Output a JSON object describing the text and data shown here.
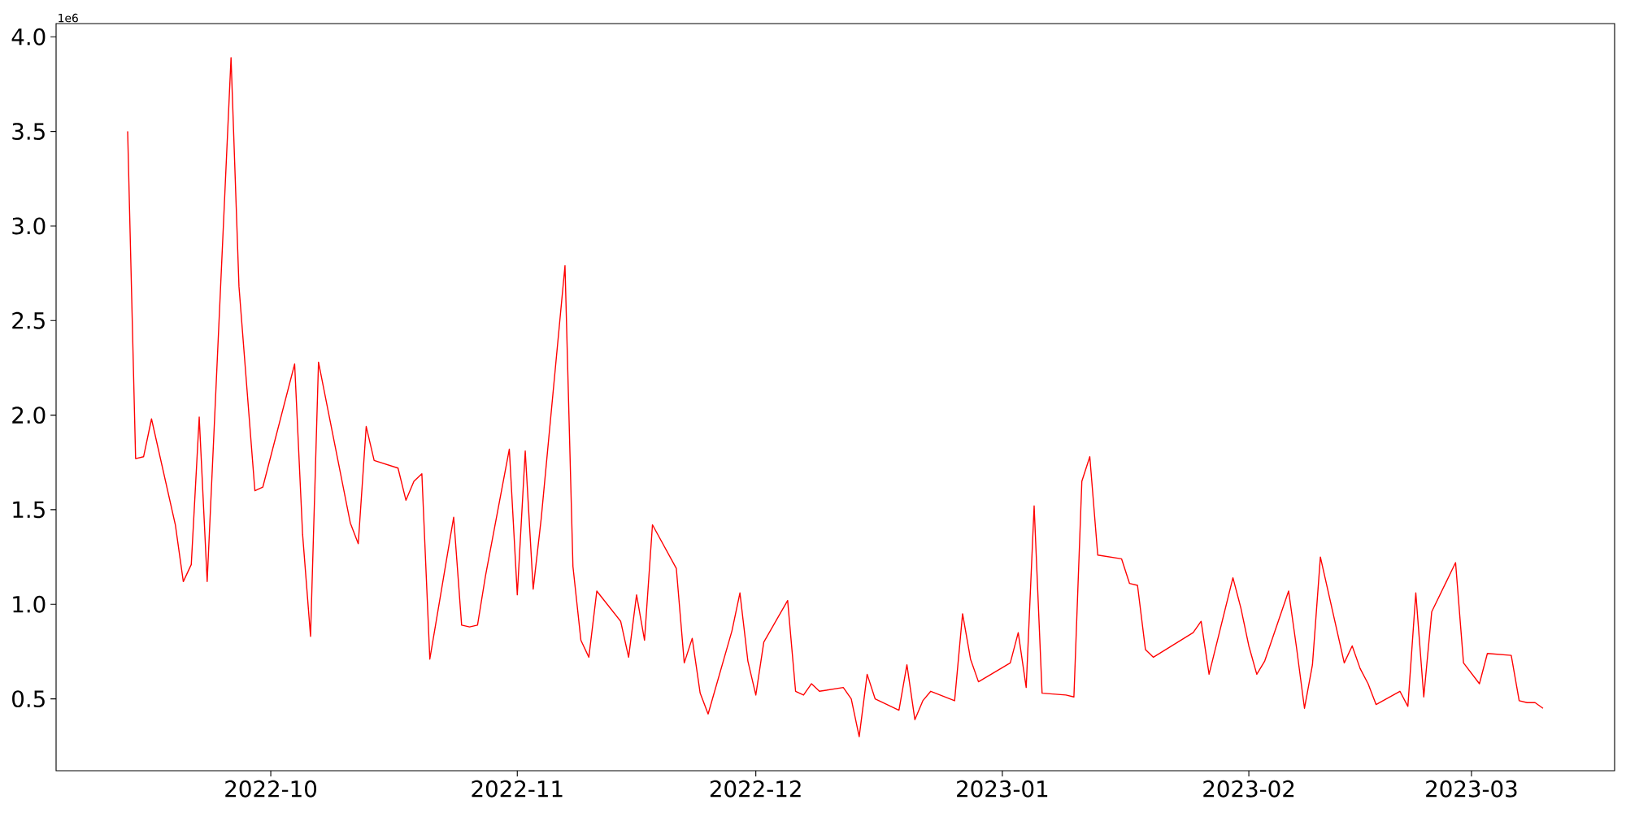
{
  "chart_data": {
    "type": "line",
    "color": "#ff0000",
    "x": [
      "2022-09-13",
      "2022-09-14",
      "2022-09-15",
      "2022-09-16",
      "2022-09-19",
      "2022-09-20",
      "2022-09-21",
      "2022-09-22",
      "2022-09-23",
      "2022-09-26",
      "2022-09-27",
      "2022-09-29",
      "2022-09-30",
      "2022-10-04",
      "2022-10-05",
      "2022-10-06",
      "2022-10-07",
      "2022-10-11",
      "2022-10-12",
      "2022-10-13",
      "2022-10-14",
      "2022-10-17",
      "2022-10-18",
      "2022-10-19",
      "2022-10-20",
      "2022-10-21",
      "2022-10-24",
      "2022-10-25",
      "2022-10-26",
      "2022-10-27",
      "2022-10-28",
      "2022-10-31",
      "2022-11-01",
      "2022-11-02",
      "2022-11-03",
      "2022-11-04",
      "2022-11-07",
      "2022-11-08",
      "2022-11-09",
      "2022-11-10",
      "2022-11-11",
      "2022-11-14",
      "2022-11-15",
      "2022-11-16",
      "2022-11-17",
      "2022-11-18",
      "2022-11-21",
      "2022-11-22",
      "2022-11-23",
      "2022-11-24",
      "2022-11-25",
      "2022-11-28",
      "2022-11-29",
      "2022-11-30",
      "2022-12-01",
      "2022-12-02",
      "2022-12-05",
      "2022-12-06",
      "2022-12-07",
      "2022-12-08",
      "2022-12-09",
      "2022-12-12",
      "2022-12-13",
      "2022-12-14",
      "2022-12-15",
      "2022-12-16",
      "2022-12-19",
      "2022-12-20",
      "2022-12-21",
      "2022-12-22",
      "2022-12-23",
      "2022-12-26",
      "2022-12-27",
      "2022-12-28",
      "2022-12-29",
      "2023-01-02",
      "2023-01-03",
      "2023-01-04",
      "2023-01-05",
      "2023-01-06",
      "2023-01-09",
      "2023-01-10",
      "2023-01-11",
      "2023-01-12",
      "2023-01-13",
      "2023-01-16",
      "2023-01-17",
      "2023-01-18",
      "2023-01-19",
      "2023-01-20",
      "2023-01-25",
      "2023-01-26",
      "2023-01-27",
      "2023-01-30",
      "2023-01-31",
      "2023-02-01",
      "2023-02-02",
      "2023-02-03",
      "2023-02-06",
      "2023-02-07",
      "2023-02-08",
      "2023-02-09",
      "2023-02-10",
      "2023-02-13",
      "2023-02-14",
      "2023-02-15",
      "2023-02-16",
      "2023-02-17",
      "2023-02-20",
      "2023-02-21",
      "2023-02-22",
      "2023-02-23",
      "2023-02-24",
      "2023-02-27",
      "2023-02-28",
      "2023-03-02",
      "2023-03-03",
      "2023-03-06",
      "2023-03-07",
      "2023-03-08",
      "2023-03-09",
      "2023-03-10"
    ],
    "values": [
      3.5,
      1.77,
      1.78,
      1.98,
      1.42,
      1.12,
      1.21,
      1.99,
      1.12,
      3.89,
      2.68,
      1.6,
      1.62,
      2.27,
      1.37,
      0.83,
      2.28,
      1.43,
      1.32,
      1.94,
      1.76,
      1.72,
      1.55,
      1.65,
      1.69,
      0.71,
      1.46,
      0.89,
      0.88,
      0.89,
      1.15,
      1.82,
      1.05,
      1.81,
      1.08,
      1.45,
      2.79,
      1.2,
      0.81,
      0.72,
      1.07,
      0.91,
      0.72,
      1.05,
      0.81,
      1.42,
      1.19,
      0.69,
      0.82,
      0.53,
      0.42,
      0.86,
      1.06,
      0.7,
      0.52,
      0.8,
      1.02,
      0.54,
      0.52,
      0.58,
      0.54,
      0.56,
      0.5,
      0.3,
      0.63,
      0.5,
      0.44,
      0.68,
      0.39,
      0.49,
      0.54,
      0.49,
      0.95,
      0.71,
      0.59,
      0.69,
      0.85,
      0.56,
      1.52,
      0.53,
      0.52,
      0.51,
      1.65,
      1.78,
      1.26,
      1.24,
      1.11,
      1.1,
      0.76,
      0.72,
      0.85,
      0.91,
      0.63,
      1.14,
      0.98,
      0.78,
      0.63,
      0.7,
      1.07,
      0.77,
      0.45,
      0.68,
      1.25,
      0.69,
      0.78,
      0.66,
      0.58,
      0.47,
      0.54,
      0.46,
      1.06,
      0.51,
      0.96,
      1.22,
      0.69,
      0.58,
      0.74,
      0.73,
      0.49,
      0.48,
      0.48,
      0.45
    ],
    "xlim": [
      "2022-09-04",
      "2023-03-19"
    ],
    "ylim": [
      0.12,
      4.07
    ],
    "xticks": [
      {
        "value": "2022-10-01",
        "label": "2022-10"
      },
      {
        "value": "2022-11-01",
        "label": "2022-11"
      },
      {
        "value": "2022-12-01",
        "label": "2022-12"
      },
      {
        "value": "2023-01-01",
        "label": "2023-01"
      },
      {
        "value": "2023-02-01",
        "label": "2023-02"
      },
      {
        "value": "2023-03-01",
        "label": "2023-03"
      }
    ],
    "yticks": [
      {
        "value": 0.5,
        "label": "0.5"
      },
      {
        "value": 1.0,
        "label": "1.0"
      },
      {
        "value": 1.5,
        "label": "1.5"
      },
      {
        "value": 2.0,
        "label": "2.0"
      },
      {
        "value": 2.5,
        "label": "2.5"
      },
      {
        "value": 3.0,
        "label": "3.0"
      },
      {
        "value": 3.5,
        "label": "3.5"
      },
      {
        "value": 4.0,
        "label": "4.0"
      }
    ],
    "annotations": [
      "1e6"
    ]
  }
}
